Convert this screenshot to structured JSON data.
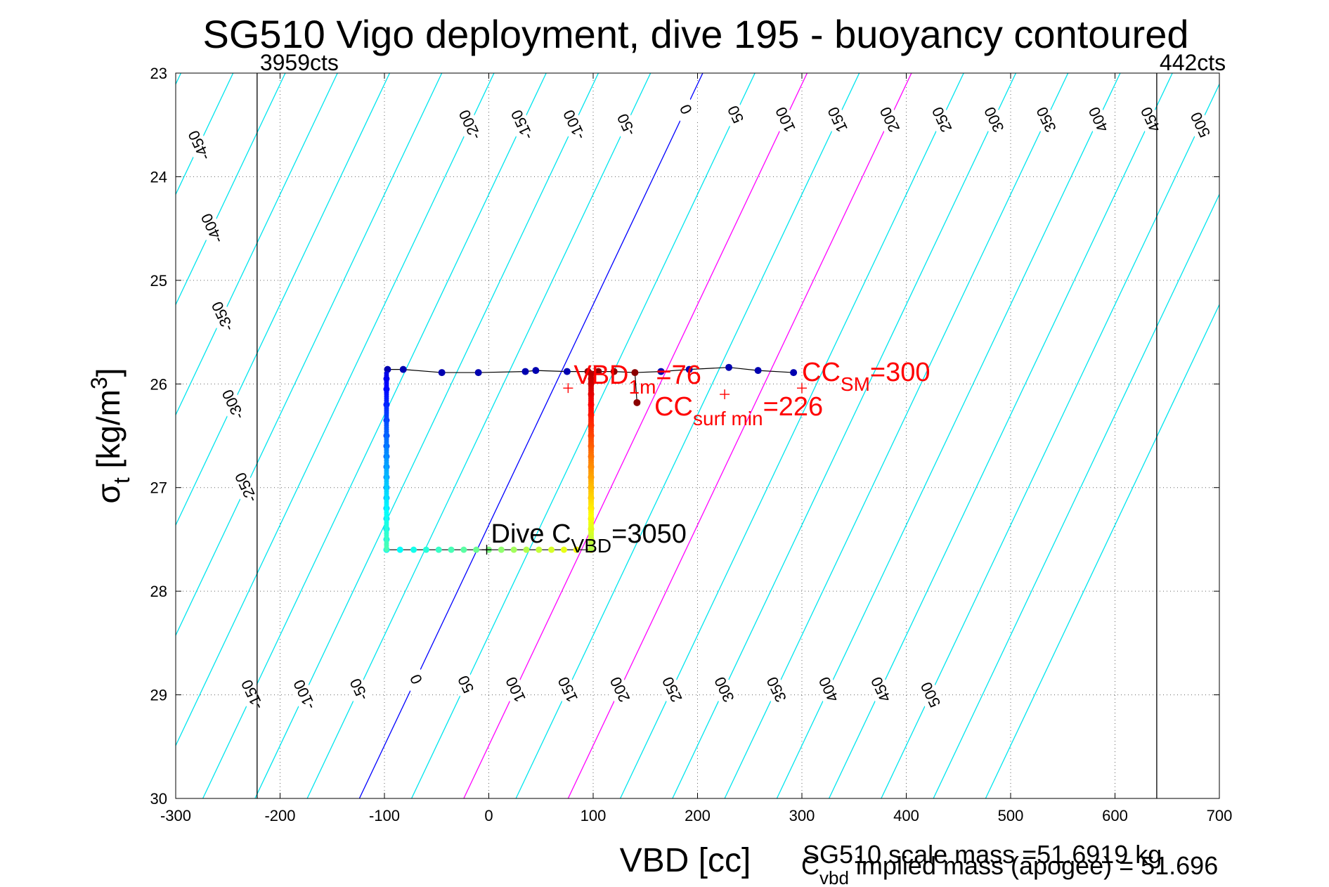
{
  "chart_data": {
    "type": "scatter",
    "title": "SG510 Vigo deployment, dive 195 - buoyancy contoured",
    "xlabel": "VBD [cc]",
    "ylabel": {
      "main": "σ",
      "sub": "t",
      "unit": " [kg/m",
      "sup": "3",
      "close": "]"
    },
    "xlim": [
      -300,
      700
    ],
    "ylim": [
      23,
      30
    ],
    "y_reversed": true,
    "grid": true,
    "x_ticks": [
      -300,
      -200,
      -100,
      0,
      100,
      200,
      300,
      400,
      500,
      600,
      700
    ],
    "x_tick_labels": [
      "-300",
      "-200",
      "-100",
      "0",
      "100",
      "200",
      "300",
      "400",
      "500",
      "600",
      "700"
    ],
    "y_ticks": [
      23,
      24,
      25,
      26,
      27,
      28,
      29,
      30
    ],
    "y_tick_labels": [
      "23",
      "24",
      "25",
      "26",
      "27",
      "28",
      "29",
      "30"
    ],
    "limit_lines": [
      {
        "x": -222,
        "label": "3959cts"
      },
      {
        "x": 640,
        "label": "442cts"
      }
    ],
    "buoyancy_contours": {
      "slope_cc_per_sigma": 47,
      "values": [
        -450,
        -400,
        -350,
        -300,
        -250,
        -200,
        -150,
        -100,
        -50,
        0,
        50,
        100,
        150,
        200,
        250,
        300,
        350,
        400,
        450,
        500
      ],
      "zero_x_at_top": 205,
      "highlight": [
        {
          "value": 0,
          "color": "#0000ff"
        },
        {
          "value": 100,
          "color": "#ff00ff"
        },
        {
          "value": 200,
          "color": "#ff00ff"
        }
      ],
      "base_color": "#00e5ee",
      "top_labels": [
        {
          "value": -450,
          "sigma": 23.7
        },
        {
          "value": -400,
          "sigma": 24.5
        },
        {
          "value": -350,
          "sigma": 25.35
        },
        {
          "value": -300,
          "sigma": 26.2
        },
        {
          "value": -250,
          "sigma": 27.0
        },
        {
          "value": -200,
          "sigma": 23.5
        },
        {
          "value": -150,
          "sigma": 23.5
        },
        {
          "value": -100,
          "sigma": 23.5
        },
        {
          "value": -50,
          "sigma": 23.5
        },
        {
          "value": 0,
          "sigma": 23.35
        },
        {
          "value": 50,
          "sigma": 23.4
        },
        {
          "value": 100,
          "sigma": 23.45
        },
        {
          "value": 150,
          "sigma": 23.45
        },
        {
          "value": 200,
          "sigma": 23.45
        },
        {
          "value": 250,
          "sigma": 23.45
        },
        {
          "value": 300,
          "sigma": 23.45
        },
        {
          "value": 350,
          "sigma": 23.45
        },
        {
          "value": 400,
          "sigma": 23.45
        },
        {
          "value": 450,
          "sigma": 23.45
        },
        {
          "value": 500,
          "sigma": 23.5
        }
      ],
      "bottom_labels": [
        {
          "value": -150,
          "sigma": 29.0
        },
        {
          "value": -100,
          "sigma": 29.0
        },
        {
          "value": -50,
          "sigma": 28.95
        },
        {
          "value": 0,
          "sigma": 28.85
        },
        {
          "value": 50,
          "sigma": 28.9
        },
        {
          "value": 100,
          "sigma": 28.95
        },
        {
          "value": 150,
          "sigma": 28.95
        },
        {
          "value": 200,
          "sigma": 28.95
        },
        {
          "value": 250,
          "sigma": 28.95
        },
        {
          "value": 300,
          "sigma": 28.95
        },
        {
          "value": 350,
          "sigma": 28.95
        },
        {
          "value": 400,
          "sigma": 28.95
        },
        {
          "value": 450,
          "sigma": 28.95
        },
        {
          "value": 500,
          "sigma": 29.0
        }
      ]
    },
    "series": [
      {
        "colorscale": "jet (by depth)",
        "description": "dive profile points",
        "points": [
          [
            -97,
            25.86
          ],
          [
            -82,
            25.86
          ],
          [
            -45,
            25.89
          ],
          [
            -10,
            25.89
          ],
          [
            35,
            25.88
          ],
          [
            45,
            25.87
          ],
          [
            75,
            25.88
          ],
          [
            95,
            25.88
          ],
          [
            105,
            25.88
          ],
          [
            120,
            25.88
          ],
          [
            140,
            25.89
          ],
          [
            142,
            26.18
          ],
          [
            165,
            25.88
          ],
          [
            192,
            25.86
          ],
          [
            230,
            25.84
          ],
          [
            258,
            25.87
          ],
          [
            292,
            25.89
          ],
          [
            -98,
            25.95
          ],
          [
            -98,
            26.05
          ],
          [
            -98,
            26.2
          ],
          [
            -98,
            26.35
          ],
          [
            -98,
            26.5
          ],
          [
            -98,
            26.6
          ],
          [
            -98,
            26.7
          ],
          [
            -98,
            26.8
          ],
          [
            -98,
            26.9
          ],
          [
            -98,
            27.0
          ],
          [
            -98,
            27.1
          ],
          [
            -98,
            27.2
          ],
          [
            -98,
            27.3
          ],
          [
            -98,
            27.4
          ],
          [
            -98,
            27.5
          ],
          [
            -98,
            27.6
          ],
          [
            -85,
            27.6
          ],
          [
            -72,
            27.6
          ],
          [
            -60,
            27.6
          ],
          [
            -48,
            27.6
          ],
          [
            -36,
            27.6
          ],
          [
            -24,
            27.6
          ],
          [
            -12,
            27.6
          ],
          [
            0,
            27.6
          ],
          [
            12,
            27.6
          ],
          [
            24,
            27.6
          ],
          [
            36,
            27.6
          ],
          [
            48,
            27.6
          ],
          [
            60,
            27.6
          ],
          [
            72,
            27.6
          ],
          [
            84,
            27.6
          ],
          [
            98,
            27.6
          ],
          [
            98,
            27.5
          ],
          [
            98,
            27.4
          ],
          [
            98,
            27.3
          ],
          [
            98,
            27.2
          ],
          [
            98,
            27.1
          ],
          [
            98,
            27.0
          ],
          [
            98,
            26.9
          ],
          [
            98,
            26.8
          ],
          [
            98,
            26.7
          ],
          [
            98,
            26.6
          ],
          [
            98,
            26.5
          ],
          [
            98,
            26.4
          ],
          [
            98,
            26.3
          ],
          [
            98,
            26.2
          ],
          [
            98,
            26.1
          ],
          [
            98,
            26.0
          ],
          [
            98,
            25.95
          ],
          [
            98,
            25.9
          ]
        ]
      }
    ],
    "markers": [
      {
        "x": 76,
        "y": 26.04,
        "label_main": "VBD",
        "label_sub": "1m",
        "label_tail": "=76",
        "color": "#ff0000"
      },
      {
        "x": 300,
        "y": 26.04,
        "label_main": "CC",
        "label_sub": "SM",
        "label_tail": "=300",
        "color": "#ff0000"
      },
      {
        "x": 226,
        "y": 26.1,
        "label_main": "CC",
        "label_sub": "surf min",
        "label_tail": "=226",
        "color": "#ff0000"
      },
      {
        "x": -2,
        "y": 27.6,
        "label_main": "Dive C",
        "label_sub": "VBD",
        "label_tail": "=3050",
        "color": "#000000"
      }
    ],
    "footer": {
      "line1": "SG510 scale mass =51.6919 kg",
      "line2_main": "C",
      "line2_sub": "vbd",
      "line2_tail": " implied mass (apogee) = 51.696"
    }
  }
}
